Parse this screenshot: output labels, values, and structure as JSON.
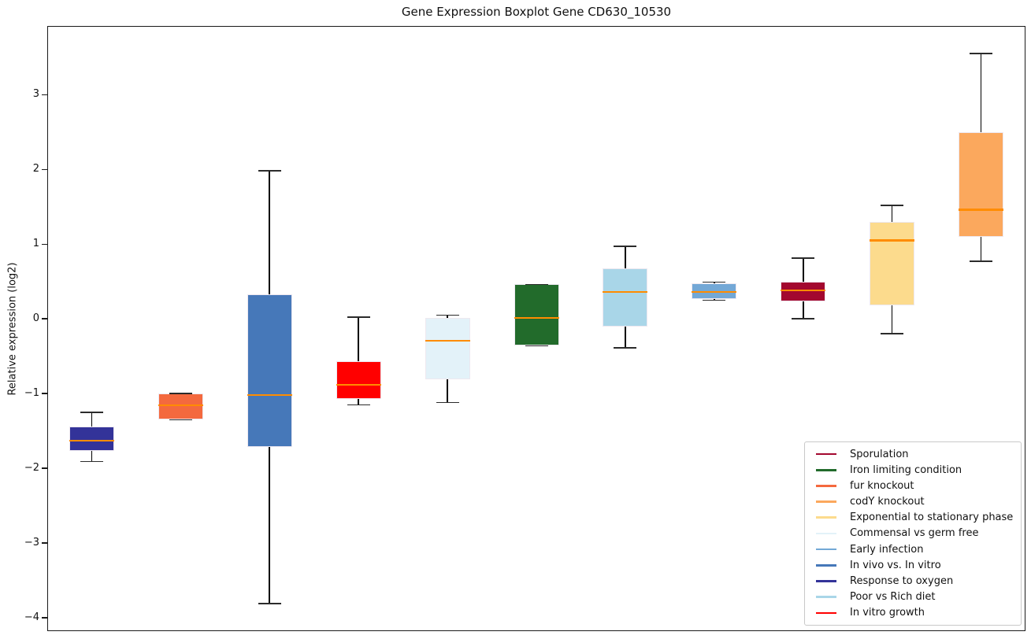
{
  "chart_data": {
    "type": "boxplot",
    "title": "Gene Expression Boxplot Gene CD630_10530",
    "ylabel": "Relative expression (log2)",
    "xlabel": "",
    "ylim": [
      -4.18,
      3.92
    ],
    "y_ticks": [
      3,
      2,
      1,
      0,
      -1,
      -2,
      -3,
      -4
    ],
    "y_tick_labels": [
      "3",
      "2",
      "1",
      "0",
      "−1",
      "−2",
      "−3",
      "−4"
    ],
    "grid": false,
    "x_tick_labels_shown": false,
    "median_color": "#FF8C00",
    "whisker_color": "#000000",
    "box_edge_color": "#EDE8F0",
    "boxes": [
      {
        "label": "Response to oxygen",
        "color": "#333399",
        "whisker_low": -1.91,
        "q1": -1.77,
        "median": -1.63,
        "q3": -1.44,
        "whisker_high": -1.25
      },
      {
        "label": "fur knockout",
        "color": "#F4693E",
        "whisker_low": -1.35,
        "q1": -1.35,
        "median": -1.16,
        "q3": -1.0,
        "whisker_high": -1.0
      },
      {
        "label": "In vivo vs. In vitro",
        "color": "#4678B9",
        "whisker_low": -3.81,
        "q1": -1.72,
        "median": -1.02,
        "q3": 0.33,
        "whisker_high": 1.98
      },
      {
        "label": "In vitro growth",
        "color": "#FF0000",
        "whisker_low": -1.15,
        "q1": -1.07,
        "median": -0.88,
        "q3": -0.57,
        "whisker_high": 0.02
      },
      {
        "label": "Commensal vs germ free",
        "color": "#E3F2F9",
        "whisker_low": -1.12,
        "q1": -0.81,
        "median": -0.29,
        "q3": 0.01,
        "whisker_high": 0.05
      },
      {
        "label": "Iron limiting condition",
        "color": "#226B2B",
        "whisker_low": -0.36,
        "q1": -0.36,
        "median": 0.01,
        "q3": 0.46,
        "whisker_high": 0.46
      },
      {
        "label": "Poor vs Rich diet",
        "color": "#A9D6E8",
        "whisker_low": -0.39,
        "q1": -0.1,
        "median": 0.36,
        "q3": 0.68,
        "whisker_high": 0.97
      },
      {
        "label": "Early infection",
        "color": "#73A8D6",
        "whisker_low": 0.25,
        "q1": 0.26,
        "median": 0.36,
        "q3": 0.48,
        "whisker_high": 0.49
      },
      {
        "label": "Sporulation",
        "color": "#A3082F",
        "whisker_low": 0.0,
        "q1": 0.23,
        "median": 0.38,
        "q3": 0.5,
        "whisker_high": 0.81
      },
      {
        "label": "Exponential to stationary phase",
        "color": "#FCDB8D",
        "whisker_low": -0.2,
        "q1": 0.18,
        "median": 1.05,
        "q3": 1.3,
        "whisker_high": 1.52
      },
      {
        "label": "codY knockout",
        "color": "#FBA85D",
        "whisker_low": 0.77,
        "q1": 1.1,
        "median": 1.46,
        "q3": 2.5,
        "whisker_high": 3.55
      }
    ],
    "legend": {
      "position": "lower right",
      "entries": [
        {
          "label": "Sporulation",
          "color": "#A3082F"
        },
        {
          "label": "Iron limiting condition",
          "color": "#226B2B"
        },
        {
          "label": "fur knockout",
          "color": "#F4693E"
        },
        {
          "label": "codY knockout",
          "color": "#FBA85D"
        },
        {
          "label": "Exponential to stationary phase",
          "color": "#FCDB8D"
        },
        {
          "label": "Commensal vs germ free",
          "color": "#E3F2F9"
        },
        {
          "label": "Early infection",
          "color": "#73A8D6"
        },
        {
          "label": "In vivo vs. In vitro",
          "color": "#4678B9"
        },
        {
          "label": "Response to oxygen",
          "color": "#333399"
        },
        {
          "label": "Poor vs Rich diet",
          "color": "#A9D6E8"
        },
        {
          "label": "In vitro growth",
          "color": "#FF0000"
        }
      ]
    }
  }
}
